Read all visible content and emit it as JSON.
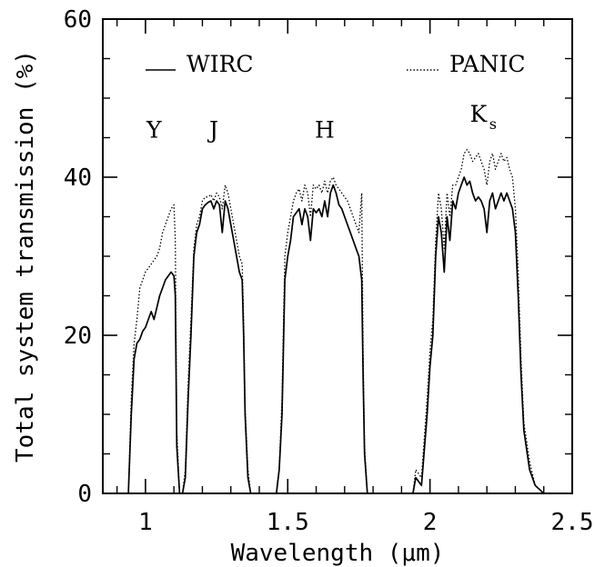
{
  "chart_data": {
    "type": "line",
    "xlabel": "Wavelength (μm)",
    "ylabel": "Total system transmission (%)",
    "xlim": [
      0.85,
      2.5
    ],
    "ylim": [
      0,
      60
    ],
    "x_ticks": [
      {
        "value": 1.0,
        "label": "1"
      },
      {
        "value": 1.5,
        "label": "1.5"
      },
      {
        "value": 2.0,
        "label": "2"
      },
      {
        "value": 2.5,
        "label": "2.5"
      }
    ],
    "x_minor_step": 0.1,
    "y_ticks": [
      {
        "value": 0,
        "label": "0"
      },
      {
        "value": 20,
        "label": "20"
      },
      {
        "value": 40,
        "label": "40"
      },
      {
        "value": 60,
        "label": "60"
      }
    ],
    "y_minor_step": 5,
    "grid": false,
    "legend": {
      "placement": "top",
      "entries": [
        {
          "name": "WIRC",
          "style": "solid"
        },
        {
          "name": "PANIC",
          "style": "dotted"
        }
      ]
    },
    "band_labels": [
      {
        "text": "Y",
        "sub": "",
        "x": 1.03,
        "y": 45
      },
      {
        "text": "J",
        "sub": "",
        "x": 1.24,
        "y": 45
      },
      {
        "text": "H",
        "sub": "",
        "x": 1.63,
        "y": 45
      },
      {
        "text": "K",
        "sub": "s",
        "x": 2.17,
        "y": 47
      }
    ],
    "series": [
      {
        "name": "WIRC",
        "style": "solid",
        "color": "#000000",
        "points": [
          [
            0.94,
            0
          ],
          [
            0.95,
            10
          ],
          [
            0.96,
            17
          ],
          [
            0.97,
            19
          ],
          [
            0.98,
            19.5
          ],
          [
            0.99,
            20.5
          ],
          [
            1.0,
            21
          ],
          [
            1.01,
            22
          ],
          [
            1.02,
            23
          ],
          [
            1.03,
            22
          ],
          [
            1.04,
            23.5
          ],
          [
            1.05,
            25
          ],
          [
            1.06,
            26
          ],
          [
            1.07,
            27
          ],
          [
            1.08,
            27.5
          ],
          [
            1.09,
            28
          ],
          [
            1.1,
            27.5
          ],
          [
            1.105,
            25
          ],
          [
            1.11,
            6
          ],
          [
            1.12,
            0
          ],
          [
            1.13,
            0
          ],
          [
            1.14,
            2
          ],
          [
            1.15,
            12
          ],
          [
            1.16,
            20
          ],
          [
            1.17,
            30
          ],
          [
            1.18,
            33
          ],
          [
            1.19,
            34
          ],
          [
            1.2,
            36
          ],
          [
            1.21,
            36.5
          ],
          [
            1.22,
            36.8
          ],
          [
            1.23,
            37
          ],
          [
            1.24,
            36
          ],
          [
            1.25,
            37
          ],
          [
            1.26,
            36.5
          ],
          [
            1.27,
            33
          ],
          [
            1.28,
            37
          ],
          [
            1.29,
            36
          ],
          [
            1.3,
            34
          ],
          [
            1.31,
            32
          ],
          [
            1.32,
            30
          ],
          [
            1.33,
            28
          ],
          [
            1.34,
            27
          ],
          [
            1.345,
            20
          ],
          [
            1.35,
            10
          ],
          [
            1.36,
            2
          ],
          [
            1.37,
            0
          ],
          [
            1.46,
            0
          ],
          [
            1.47,
            3
          ],
          [
            1.48,
            10
          ],
          [
            1.49,
            27
          ],
          [
            1.5,
            30
          ],
          [
            1.51,
            32
          ],
          [
            1.52,
            35
          ],
          [
            1.53,
            35.5
          ],
          [
            1.54,
            36
          ],
          [
            1.55,
            34
          ],
          [
            1.56,
            36
          ],
          [
            1.57,
            35
          ],
          [
            1.58,
            32
          ],
          [
            1.59,
            36
          ],
          [
            1.6,
            35.5
          ],
          [
            1.61,
            36
          ],
          [
            1.62,
            35
          ],
          [
            1.63,
            37
          ],
          [
            1.64,
            35
          ],
          [
            1.65,
            38
          ],
          [
            1.66,
            39
          ],
          [
            1.67,
            38
          ],
          [
            1.68,
            36.5
          ],
          [
            1.69,
            36
          ],
          [
            1.7,
            35
          ],
          [
            1.71,
            34
          ],
          [
            1.72,
            33
          ],
          [
            1.73,
            32
          ],
          [
            1.74,
            31
          ],
          [
            1.75,
            30
          ],
          [
            1.76,
            27
          ],
          [
            1.765,
            15
          ],
          [
            1.77,
            5
          ],
          [
            1.78,
            0
          ],
          [
            1.94,
            0
          ],
          [
            1.95,
            2
          ],
          [
            1.97,
            1
          ],
          [
            1.99,
            10
          ],
          [
            2.0,
            16
          ],
          [
            2.01,
            20
          ],
          [
            2.02,
            30
          ],
          [
            2.03,
            35
          ],
          [
            2.04,
            33
          ],
          [
            2.05,
            28
          ],
          [
            2.06,
            35
          ],
          [
            2.07,
            32
          ],
          [
            2.08,
            37
          ],
          [
            2.09,
            36
          ],
          [
            2.1,
            38
          ],
          [
            2.11,
            39
          ],
          [
            2.12,
            40
          ],
          [
            2.13,
            39
          ],
          [
            2.14,
            39.5
          ],
          [
            2.15,
            38
          ],
          [
            2.16,
            37
          ],
          [
            2.17,
            37.5
          ],
          [
            2.18,
            37
          ],
          [
            2.19,
            36
          ],
          [
            2.2,
            33
          ],
          [
            2.21,
            37
          ],
          [
            2.22,
            38
          ],
          [
            2.23,
            36
          ],
          [
            2.24,
            37
          ],
          [
            2.25,
            38
          ],
          [
            2.26,
            37
          ],
          [
            2.27,
            38
          ],
          [
            2.28,
            37
          ],
          [
            2.29,
            36
          ],
          [
            2.3,
            33
          ],
          [
            2.31,
            25
          ],
          [
            2.32,
            15
          ],
          [
            2.33,
            8
          ],
          [
            2.35,
            3
          ],
          [
            2.37,
            1
          ],
          [
            2.4,
            0
          ]
        ]
      },
      {
        "name": "PANIC",
        "style": "dotted",
        "color": "#000000",
        "points": [
          [
            0.94,
            0
          ],
          [
            0.95,
            12
          ],
          [
            0.96,
            19
          ],
          [
            0.97,
            22
          ],
          [
            0.98,
            26
          ],
          [
            0.99,
            27
          ],
          [
            1.0,
            28
          ],
          [
            1.01,
            28.5
          ],
          [
            1.02,
            29
          ],
          [
            1.03,
            29.5
          ],
          [
            1.04,
            30
          ],
          [
            1.05,
            31
          ],
          [
            1.06,
            33
          ],
          [
            1.07,
            34
          ],
          [
            1.08,
            35
          ],
          [
            1.09,
            36
          ],
          [
            1.1,
            36.5
          ],
          [
            1.105,
            32
          ],
          [
            1.11,
            8
          ],
          [
            1.12,
            0
          ],
          [
            1.13,
            0
          ],
          [
            1.14,
            3
          ],
          [
            1.15,
            14
          ],
          [
            1.16,
            22
          ],
          [
            1.17,
            31
          ],
          [
            1.18,
            34
          ],
          [
            1.19,
            35
          ],
          [
            1.2,
            37
          ],
          [
            1.21,
            37.5
          ],
          [
            1.22,
            37.5
          ],
          [
            1.23,
            37.8
          ],
          [
            1.24,
            37
          ],
          [
            1.25,
            38
          ],
          [
            1.26,
            37.5
          ],
          [
            1.27,
            36
          ],
          [
            1.28,
            39
          ],
          [
            1.29,
            38
          ],
          [
            1.3,
            36
          ],
          [
            1.31,
            34
          ],
          [
            1.32,
            32
          ],
          [
            1.33,
            30
          ],
          [
            1.34,
            29
          ],
          [
            1.345,
            22
          ],
          [
            1.35,
            11
          ],
          [
            1.36,
            3
          ],
          [
            1.37,
            0
          ],
          [
            1.46,
            0
          ],
          [
            1.47,
            3
          ],
          [
            1.48,
            12
          ],
          [
            1.49,
            30
          ],
          [
            1.5,
            33
          ],
          [
            1.51,
            35
          ],
          [
            1.52,
            37
          ],
          [
            1.53,
            38
          ],
          [
            1.54,
            38.5
          ],
          [
            1.55,
            37
          ],
          [
            1.56,
            39
          ],
          [
            1.57,
            38
          ],
          [
            1.58,
            35
          ],
          [
            1.59,
            39
          ],
          [
            1.6,
            38.5
          ],
          [
            1.61,
            39
          ],
          [
            1.62,
            38
          ],
          [
            1.63,
            39.5
          ],
          [
            1.64,
            38
          ],
          [
            1.65,
            39.5
          ],
          [
            1.66,
            40
          ],
          [
            1.67,
            39
          ],
          [
            1.68,
            38.5
          ],
          [
            1.69,
            38
          ],
          [
            1.7,
            37.5
          ],
          [
            1.71,
            37
          ],
          [
            1.72,
            36
          ],
          [
            1.73,
            35
          ],
          [
            1.74,
            34
          ],
          [
            1.75,
            33
          ],
          [
            1.76,
            38
          ],
          [
            1.765,
            18
          ],
          [
            1.77,
            6
          ],
          [
            1.78,
            0
          ],
          [
            1.94,
            0
          ],
          [
            1.95,
            3
          ],
          [
            1.97,
            2
          ],
          [
            1.99,
            12
          ],
          [
            2.0,
            18
          ],
          [
            2.01,
            22
          ],
          [
            2.02,
            32
          ],
          [
            2.03,
            38
          ],
          [
            2.04,
            36
          ],
          [
            2.05,
            31
          ],
          [
            2.06,
            38
          ],
          [
            2.07,
            35
          ],
          [
            2.08,
            39
          ],
          [
            2.09,
            39
          ],
          [
            2.1,
            40
          ],
          [
            2.11,
            41
          ],
          [
            2.12,
            43
          ],
          [
            2.13,
            43.5
          ],
          [
            2.14,
            43
          ],
          [
            2.15,
            42
          ],
          [
            2.16,
            42.5
          ],
          [
            2.17,
            43
          ],
          [
            2.18,
            42
          ],
          [
            2.19,
            41
          ],
          [
            2.2,
            39
          ],
          [
            2.21,
            42
          ],
          [
            2.22,
            43
          ],
          [
            2.23,
            41
          ],
          [
            2.24,
            42
          ],
          [
            2.25,
            43
          ],
          [
            2.26,
            42
          ],
          [
            2.27,
            42.5
          ],
          [
            2.28,
            41
          ],
          [
            2.29,
            40
          ],
          [
            2.3,
            36
          ],
          [
            2.31,
            28
          ],
          [
            2.32,
            17
          ],
          [
            2.33,
            9
          ],
          [
            2.35,
            4
          ],
          [
            2.37,
            1
          ],
          [
            2.4,
            0
          ]
        ]
      }
    ]
  }
}
